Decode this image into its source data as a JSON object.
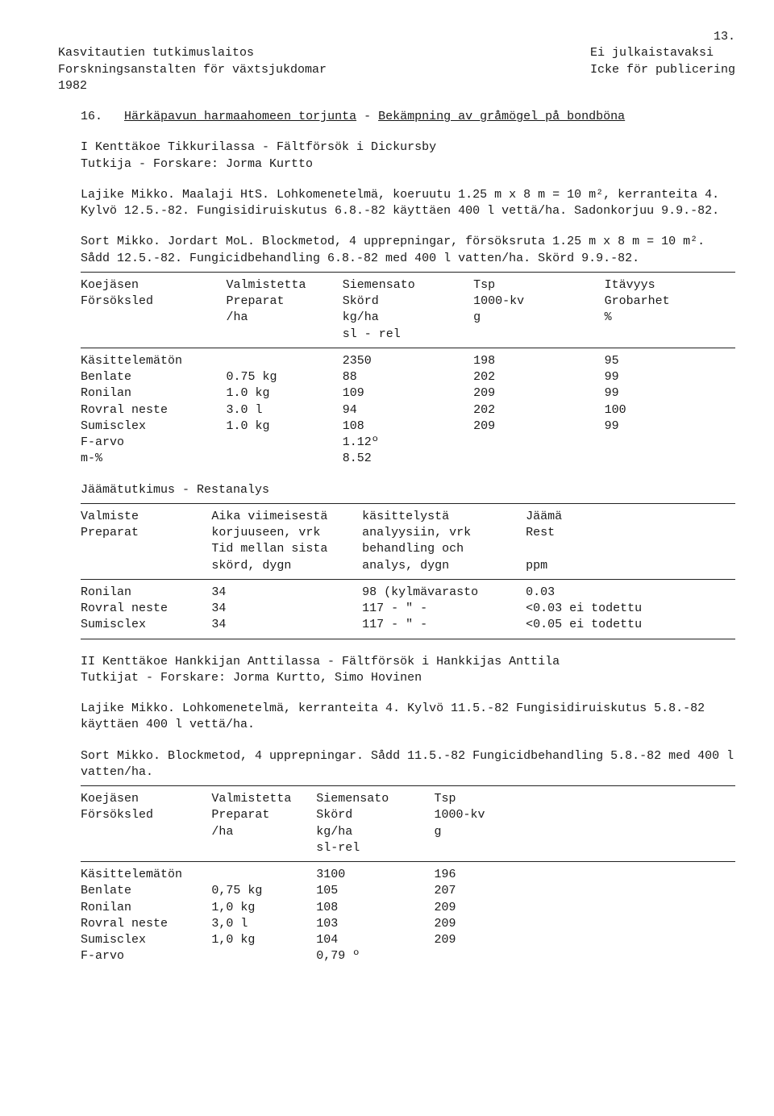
{
  "page_number": "13.",
  "header": {
    "left1": "Kasvitautien tutkimuslaitos",
    "left2": "Forskningsanstalten för växtsjukdomar",
    "left3": "1982",
    "right1": "Ei julkaistavaksi",
    "right2": "Icke för publicering"
  },
  "item_num": "16.",
  "title1": "Härkäpavun harmaahomeen torjunta",
  "title_sep": " - ",
  "title2": "Bekämpning av gråmögel på bondböna",
  "para1a": "I Kenttäkoe Tikkurilassa - Fältförsök i Dickursby",
  "para1b": "Tutkija - Forskare: Jorma Kurtto",
  "para2": "Lajike Mikko.  Maalaji HtS.  Lohkomenetelmä, koeruutu 1.25 m x 8 m = 10 m², kerranteita 4.  Kylvö 12.5.-82.  Fungisidiruiskutus 6.8.-82 käyttäen 400 l vettä/ha.  Sadonkorjuu 9.9.-82.",
  "para3": "Sort Mikko.  Jordart MoL.  Blockmetod, 4 upprepningar, försöksruta 1.25 m x 8 m = 10 m².  Sådd 12.5.-82.  Fungicidbehandling 6.8.-82 med 400 l vatten/ha. Skörd 9.9.-82.",
  "table1": {
    "h1a": "Koejäsen",
    "h1b": "Försöksled",
    "h2a": "Valmistetta",
    "h2b": "Preparat",
    "h2c": "/ha",
    "h3a": "Siemensato",
    "h3b": "Skörd",
    "h3c": "kg/ha",
    "h3d": "sl - rel",
    "h4a": "Tsp",
    "h4b": "1000-kv",
    "h4c": "g",
    "h5a": "Itävyys",
    "h5b": "Grobarhet",
    "h5c": "%",
    "rows": [
      {
        "name": "Käsittelemätön",
        "prep": "",
        "skord": "2350",
        "tsp": "198",
        "itav": "95"
      },
      {
        "name": "Benlate",
        "prep": "0.75 kg",
        "skord": "88",
        "tsp": "202",
        "itav": "99"
      },
      {
        "name": "Ronilan",
        "prep": "1.0  kg",
        "skord": "109",
        "tsp": "209",
        "itav": "99"
      },
      {
        "name": "Rovral neste",
        "prep": "3.0  l",
        "skord": "94",
        "tsp": "202",
        "itav": "100"
      },
      {
        "name": "Sumisclex",
        "prep": "1.0  kg",
        "skord": "108",
        "tsp": "209",
        "itav": "99"
      },
      {
        "name": "F-arvo",
        "prep": "",
        "skord": "1.12º",
        "tsp": "",
        "itav": ""
      },
      {
        "name": "m-%",
        "prep": "",
        "skord": "8.52",
        "tsp": "",
        "itav": ""
      }
    ]
  },
  "residue_title": "Jäämätutkimus - Restanalys",
  "table2": {
    "h1a": "Valmiste",
    "h1b": "Preparat",
    "h2a": "Aika viimeisestä",
    "h2b": "korjuuseen, vrk",
    "h2c": "Tid mellan sista",
    "h2d": "skörd, dygn",
    "h3a": "käsittelystä",
    "h3b": "analyysiin, vrk",
    "h3c": "behandling och",
    "h3d": "analys, dygn",
    "h4a": "Jäämä",
    "h4b": "Rest",
    "h4d": "ppm",
    "rows": [
      {
        "name": "Ronilan",
        "c2": "34",
        "c3": "98 (kylmävarasto",
        "c4": "0.03"
      },
      {
        "name": "Rovral neste",
        "c2": "34",
        "c3": "117    - \" -",
        "c4": "<0.03 ei todettu"
      },
      {
        "name": "Sumisclex",
        "c2": "34",
        "c3": "117    - \" -",
        "c4": "<0.05 ei todettu"
      }
    ]
  },
  "para4a": "II Kenttäkoe Hankkijan Anttilassa - Fältförsök i Hankkijas Anttila",
  "para4b": "Tutkijat - Forskare: Jorma Kurtto, Simo Hovinen",
  "para5": "Lajike Mikko.  Lohkomenetelmä, kerranteita 4.  Kylvö 11.5.-82 Fungisidiruiskutus 5.8.-82 käyttäen 400 l vettä/ha.",
  "para6": "Sort Mikko.  Blockmetod, 4 upprepningar.  Sådd 11.5.-82 Fungicidbehandling 5.8.-82 med 400 l vatten/ha.",
  "table3": {
    "h1a": "Koejäsen",
    "h1b": "Försöksled",
    "h2a": "Valmistetta",
    "h2b": "Preparat",
    "h2c": "/ha",
    "h3a": "Siemensato",
    "h3b": "Skörd",
    "h3c": "kg/ha",
    "h3d": "sl-rel",
    "h4a": "Tsp",
    "h4b": "1000-kv",
    "h4c": "g",
    "rows": [
      {
        "name": "Käsittelemätön",
        "prep": "",
        "skord": "3100",
        "tsp": "196"
      },
      {
        "name": "Benlate",
        "prep": "0,75 kg",
        "skord": "105",
        "tsp": "207"
      },
      {
        "name": "Ronilan",
        "prep": "1,0  kg",
        "skord": "108",
        "tsp": "209"
      },
      {
        "name": "Rovral neste",
        "prep": "3,0  l",
        "skord": "103",
        "tsp": "209"
      },
      {
        "name": "Sumisclex",
        "prep": "1,0  kg",
        "skord": "104",
        "tsp": "209"
      },
      {
        "name": "F-arvo",
        "prep": "",
        "skord": "0,79 º",
        "tsp": ""
      }
    ]
  }
}
